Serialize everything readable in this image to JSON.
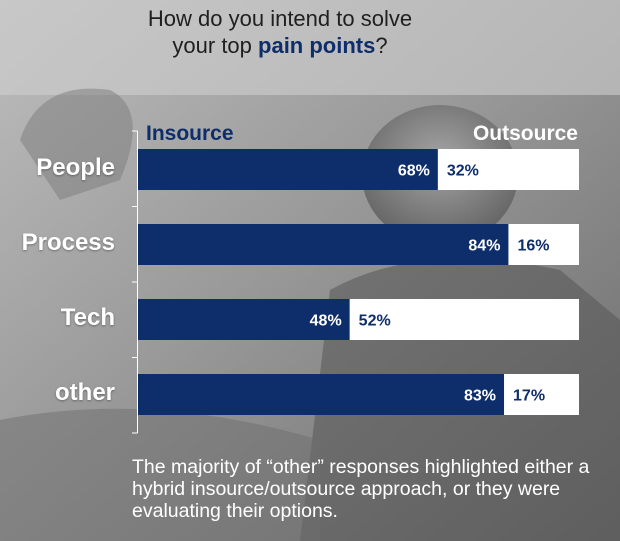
{
  "title": {
    "line1": "How do you intend to solve",
    "line2_prefix": "your top ",
    "line2_highlight": "pain points",
    "line2_suffix": "?"
  },
  "legend": {
    "insource": "Insource",
    "outsource": "Outsource"
  },
  "colors": {
    "insource": "#0e2e6b",
    "outsource": "#ffffff",
    "insource_text": "#ffffff",
    "outsource_text": "#0e2e6b"
  },
  "chart_data": {
    "type": "bar",
    "orientation": "horizontal",
    "stacked": true,
    "percent": true,
    "categories": [
      "People",
      "Process",
      "Tech",
      "other"
    ],
    "series": [
      {
        "name": "Insource",
        "values": [
          68,
          84,
          48,
          83
        ]
      },
      {
        "name": "Outsource",
        "values": [
          32,
          16,
          52,
          17
        ]
      }
    ],
    "xlim": [
      0,
      100
    ]
  },
  "footnote": "The majority of “other” responses highlighted either a hybrid insource/outsource approach, or they were evaluating their options."
}
